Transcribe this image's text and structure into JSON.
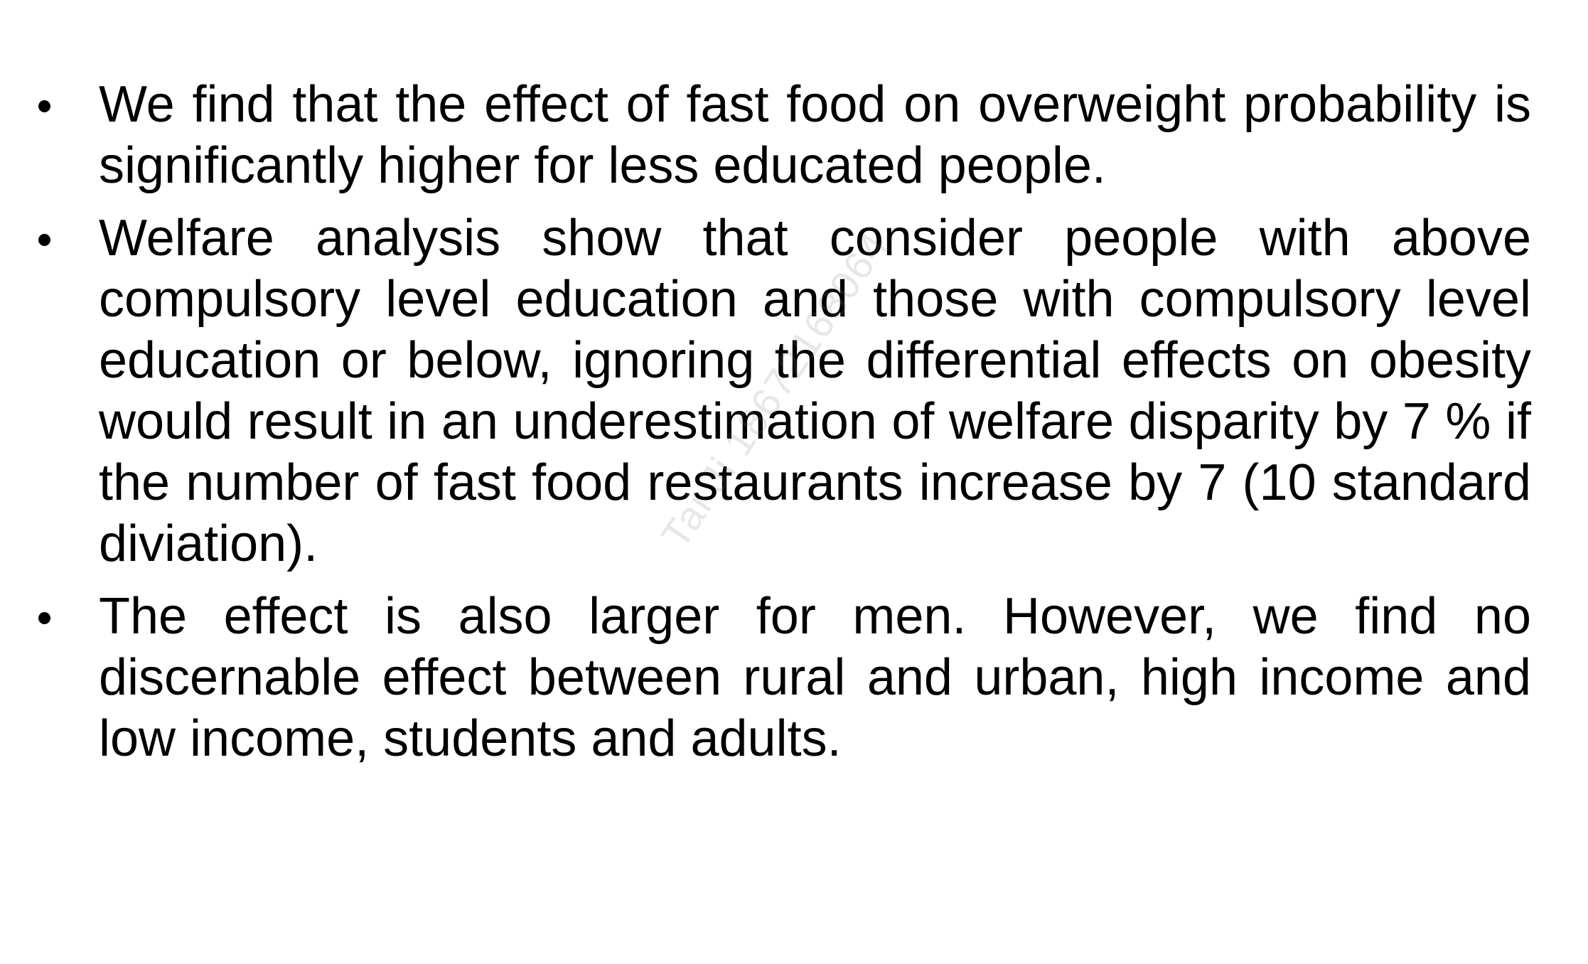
{
  "slide": {
    "bullets": [
      {
        "text": "We find that the effect of fast food on overweight probability is significantly higher for less educated people."
      },
      {
        "text": "Welfare analysis show that consider people with above compulsory level education and those with compulsory level education or below, ignoring the differential effects on obesity would result in an underestimation of welfare disparity by 7 % if the number of fast food restaurants increase by 7 (10 standard diviation)."
      },
      {
        "text": "The effect is also larger for men. However, we find no discernable effect between rural and urban, high income and low income, students and adults."
      }
    ],
    "watermark": "Tai Ji 18672168064"
  }
}
